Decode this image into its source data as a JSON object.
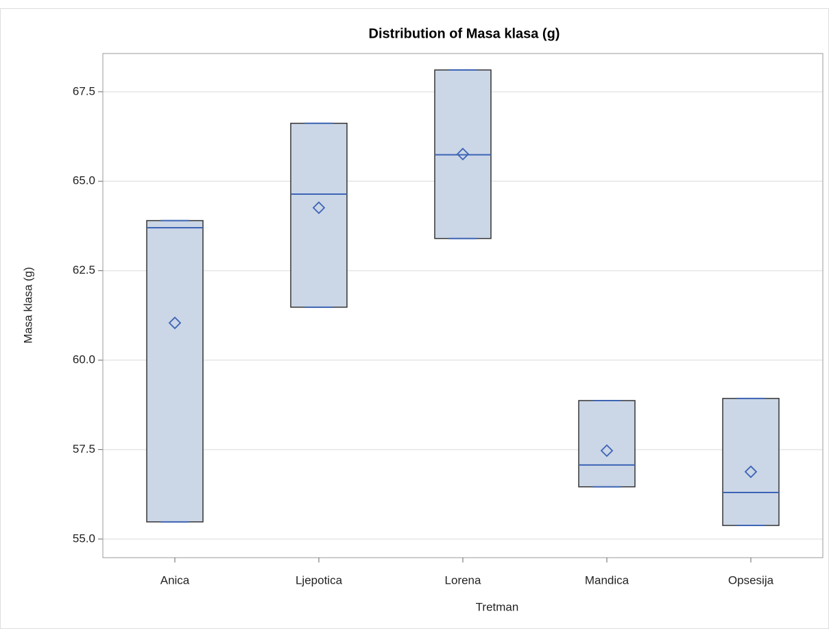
{
  "chart_data": {
    "type": "box",
    "title": "Distribution of Masa klasa (g)",
    "x_label": "Tretman",
    "y_label": "Masa klasa (g)",
    "categories": [
      "Anica",
      "Ljepotica",
      "Lorena",
      "Mandica",
      "Opsesija"
    ],
    "boxes": [
      {
        "min": 55.48,
        "q1": 55.48,
        "median": 63.7,
        "q3": 63.9,
        "max": 63.9,
        "mean": 61.04
      },
      {
        "min": 61.48,
        "q1": 61.48,
        "median": 64.64,
        "q3": 66.62,
        "max": 66.62,
        "mean": 64.26
      },
      {
        "min": 63.4,
        "q1": 63.4,
        "median": 65.74,
        "q3": 68.11,
        "max": 68.11,
        "mean": 65.76
      },
      {
        "min": 56.46,
        "q1": 56.46,
        "median": 57.07,
        "q3": 58.87,
        "max": 58.87,
        "mean": 57.47
      },
      {
        "min": 55.38,
        "q1": 55.38,
        "median": 56.3,
        "q3": 58.93,
        "max": 58.93,
        "mean": 56.88
      }
    ],
    "fill_color": "#cbd6e7",
    "line_color": "#3c64b4",
    "ylim": [
      54.48,
      68.57
    ],
    "yticks": [
      {
        "value": 55,
        "label": "55.0"
      },
      57.5,
      {
        "value": 60,
        "label": "60.0"
      },
      62.5,
      {
        "value": 65,
        "label": "65.0"
      },
      67.5
    ],
    "grid": true
  }
}
